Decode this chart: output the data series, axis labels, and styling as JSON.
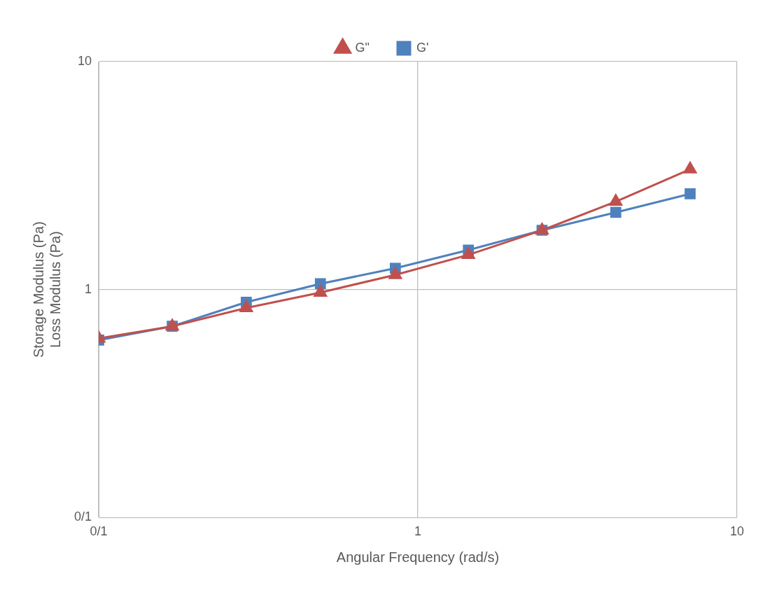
{
  "chart_data": {
    "type": "line",
    "xlabel": "Angular Frequency (rad/s)",
    "ylabel": "Storage Modulus (Pa)\nLoss Modulus (Pa)",
    "x": [
      0.1,
      0.17,
      0.29,
      0.495,
      0.85,
      1.44,
      2.45,
      4.17,
      7.13
    ],
    "series": [
      {
        "name": "G'",
        "color": "#4f81bd",
        "marker": "square",
        "values": [
          0.6,
          0.69,
          0.88,
          1.06,
          1.24,
          1.49,
          1.82,
          2.18,
          2.63
        ]
      },
      {
        "name": "G\"",
        "color": "#c0504d",
        "marker": "triangle",
        "values": [
          0.61,
          0.69,
          0.83,
          0.97,
          1.16,
          1.42,
          1.82,
          2.43,
          3.37
        ]
      }
    ],
    "log": "xy",
    "xlim": [
      0.1,
      10
    ],
    "ylim": [
      0.1,
      10
    ],
    "xticks": [
      {
        "value": 0.1,
        "label": "0/1"
      },
      1,
      10
    ],
    "yticks": [
      {
        "value": 0.1,
        "label": "0/1"
      },
      1,
      10
    ],
    "grid": true,
    "legend": "top",
    "line_style": "solid"
  }
}
